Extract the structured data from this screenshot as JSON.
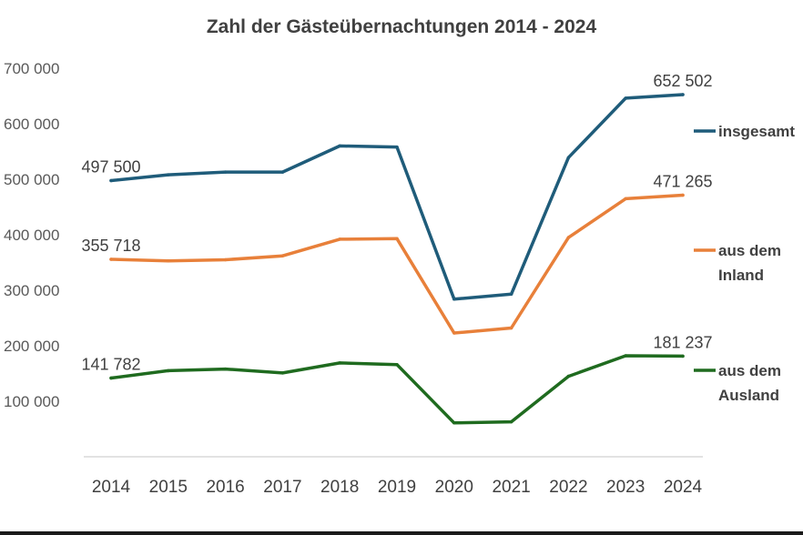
{
  "chart_data": {
    "type": "line",
    "title": "Zahl der Gästeübernachtungen 2014 - 2024",
    "xlabel": "",
    "ylabel": "",
    "ylim": [
      0,
      700000
    ],
    "yticks": [
      {
        "value": 700000,
        "label": "700 000"
      },
      {
        "value": 600000,
        "label": "600 000"
      },
      {
        "value": 500000,
        "label": "500 000"
      },
      {
        "value": 400000,
        "label": "400 000"
      },
      {
        "value": 300000,
        "label": "300 000"
      },
      {
        "value": 200000,
        "label": "200 000"
      },
      {
        "value": 100000,
        "label": "100 000"
      }
    ],
    "categories": [
      "2014",
      "2015",
      "2016",
      "2017",
      "2018",
      "2019",
      "2020",
      "2021",
      "2022",
      "2023",
      "2024"
    ],
    "grid": false,
    "legend": "right",
    "series": [
      {
        "name": [
          "insgesamt"
        ],
        "color": "#1f5c7a",
        "values": [
          497500,
          508000,
          513000,
          513000,
          560000,
          558000,
          284000,
          293000,
          539000,
          646000,
          652502
        ],
        "labels": [
          {
            "index": 0,
            "text": "497 500"
          },
          {
            "index": 10,
            "text": "652 502"
          }
        ]
      },
      {
        "name": [
          "aus dem",
          "Inland"
        ],
        "color": "#e8803a",
        "values": [
          355718,
          353000,
          355000,
          362000,
          392000,
          393000,
          223000,
          232000,
          395000,
          465000,
          471265
        ],
        "labels": [
          {
            "index": 0,
            "text": "355 718"
          },
          {
            "index": 10,
            "text": "471 265"
          }
        ]
      },
      {
        "name": [
          "aus dem",
          "Ausland"
        ],
        "color": "#1f6b1f",
        "values": [
          141782,
          155000,
          158000,
          151000,
          169000,
          166000,
          61000,
          63000,
          145000,
          182000,
          181237
        ],
        "labels": [
          {
            "index": 0,
            "text": "141 782"
          },
          {
            "index": 10,
            "text": "181 237"
          }
        ]
      }
    ]
  }
}
